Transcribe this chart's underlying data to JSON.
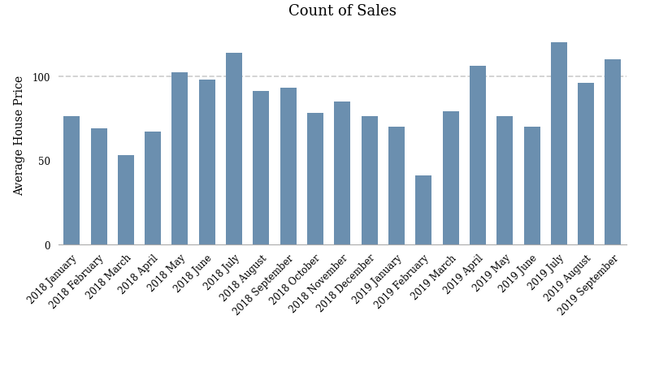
{
  "title": "Count of Sales",
  "ylabel": "Average House Price",
  "bar_color": "#6b8faf",
  "categories": [
    "2018 January",
    "2018 February",
    "2018 March",
    "2018 April",
    "2018 May",
    "2018 June",
    "2018 July",
    "2018 August",
    "2018 September",
    "2018 October",
    "2018 November",
    "2018 December",
    "2019 January",
    "2019 February",
    "2019 March",
    "2019 April",
    "2019 May",
    "2019 June",
    "2019 July",
    "2019 August",
    "2019 September"
  ],
  "values": [
    76,
    69,
    53,
    67,
    102,
    98,
    114,
    91,
    93,
    78,
    85,
    76,
    70,
    41,
    79,
    106,
    76,
    70,
    120,
    96,
    110
  ],
  "ylim": [
    0,
    130
  ],
  "yticks": [
    0,
    50,
    100
  ],
  "hline_y": 100,
  "hline_color": "#cccccc",
  "background_color": "#ffffff",
  "title_fontsize": 13,
  "ylabel_fontsize": 10,
  "tick_fontsize": 8.5,
  "bar_width": 0.6
}
